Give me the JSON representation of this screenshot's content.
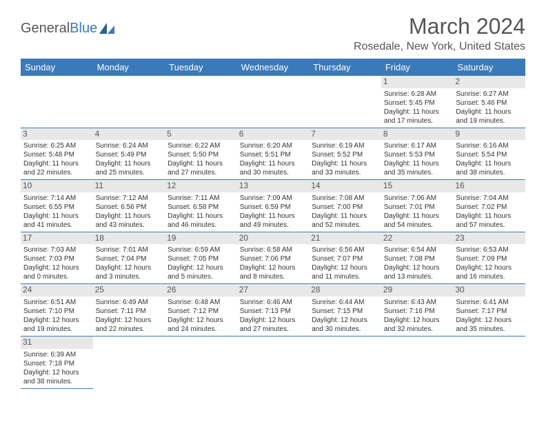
{
  "logo": {
    "text1": "General",
    "text2": "Blue"
  },
  "title": "March 2024",
  "location": "Rosedale, New York, United States",
  "colors": {
    "accent": "#3b7ab8",
    "text": "#333333",
    "headerText": "#555555",
    "dayBg": "#e8e8e8"
  },
  "dayHeaders": [
    "Sunday",
    "Monday",
    "Tuesday",
    "Wednesday",
    "Thursday",
    "Friday",
    "Saturday"
  ],
  "layout": {
    "firstWeekday": 5,
    "totalDays": 31
  },
  "days": [
    {
      "n": 1,
      "sunrise": "6:28 AM",
      "sunset": "5:45 PM",
      "daylight": "11 hours and 17 minutes."
    },
    {
      "n": 2,
      "sunrise": "6:27 AM",
      "sunset": "5:46 PM",
      "daylight": "11 hours and 19 minutes."
    },
    {
      "n": 3,
      "sunrise": "6:25 AM",
      "sunset": "5:48 PM",
      "daylight": "11 hours and 22 minutes."
    },
    {
      "n": 4,
      "sunrise": "6:24 AM",
      "sunset": "5:49 PM",
      "daylight": "11 hours and 25 minutes."
    },
    {
      "n": 5,
      "sunrise": "6:22 AM",
      "sunset": "5:50 PM",
      "daylight": "11 hours and 27 minutes."
    },
    {
      "n": 6,
      "sunrise": "6:20 AM",
      "sunset": "5:51 PM",
      "daylight": "11 hours and 30 minutes."
    },
    {
      "n": 7,
      "sunrise": "6:19 AM",
      "sunset": "5:52 PM",
      "daylight": "11 hours and 33 minutes."
    },
    {
      "n": 8,
      "sunrise": "6:17 AM",
      "sunset": "5:53 PM",
      "daylight": "11 hours and 35 minutes."
    },
    {
      "n": 9,
      "sunrise": "6:16 AM",
      "sunset": "5:54 PM",
      "daylight": "11 hours and 38 minutes."
    },
    {
      "n": 10,
      "sunrise": "7:14 AM",
      "sunset": "6:55 PM",
      "daylight": "11 hours and 41 minutes."
    },
    {
      "n": 11,
      "sunrise": "7:12 AM",
      "sunset": "6:56 PM",
      "daylight": "11 hours and 43 minutes."
    },
    {
      "n": 12,
      "sunrise": "7:11 AM",
      "sunset": "6:58 PM",
      "daylight": "11 hours and 46 minutes."
    },
    {
      "n": 13,
      "sunrise": "7:09 AM",
      "sunset": "6:59 PM",
      "daylight": "11 hours and 49 minutes."
    },
    {
      "n": 14,
      "sunrise": "7:08 AM",
      "sunset": "7:00 PM",
      "daylight": "11 hours and 52 minutes."
    },
    {
      "n": 15,
      "sunrise": "7:06 AM",
      "sunset": "7:01 PM",
      "daylight": "11 hours and 54 minutes."
    },
    {
      "n": 16,
      "sunrise": "7:04 AM",
      "sunset": "7:02 PM",
      "daylight": "11 hours and 57 minutes."
    },
    {
      "n": 17,
      "sunrise": "7:03 AM",
      "sunset": "7:03 PM",
      "daylight": "12 hours and 0 minutes."
    },
    {
      "n": 18,
      "sunrise": "7:01 AM",
      "sunset": "7:04 PM",
      "daylight": "12 hours and 3 minutes."
    },
    {
      "n": 19,
      "sunrise": "6:59 AM",
      "sunset": "7:05 PM",
      "daylight": "12 hours and 5 minutes."
    },
    {
      "n": 20,
      "sunrise": "6:58 AM",
      "sunset": "7:06 PM",
      "daylight": "12 hours and 8 minutes."
    },
    {
      "n": 21,
      "sunrise": "6:56 AM",
      "sunset": "7:07 PM",
      "daylight": "12 hours and 11 minutes."
    },
    {
      "n": 22,
      "sunrise": "6:54 AM",
      "sunset": "7:08 PM",
      "daylight": "12 hours and 13 minutes."
    },
    {
      "n": 23,
      "sunrise": "6:53 AM",
      "sunset": "7:09 PM",
      "daylight": "12 hours and 16 minutes."
    },
    {
      "n": 24,
      "sunrise": "6:51 AM",
      "sunset": "7:10 PM",
      "daylight": "12 hours and 19 minutes."
    },
    {
      "n": 25,
      "sunrise": "6:49 AM",
      "sunset": "7:11 PM",
      "daylight": "12 hours and 22 minutes."
    },
    {
      "n": 26,
      "sunrise": "6:48 AM",
      "sunset": "7:12 PM",
      "daylight": "12 hours and 24 minutes."
    },
    {
      "n": 27,
      "sunrise": "6:46 AM",
      "sunset": "7:13 PM",
      "daylight": "12 hours and 27 minutes."
    },
    {
      "n": 28,
      "sunrise": "6:44 AM",
      "sunset": "7:15 PM",
      "daylight": "12 hours and 30 minutes."
    },
    {
      "n": 29,
      "sunrise": "6:43 AM",
      "sunset": "7:16 PM",
      "daylight": "12 hours and 32 minutes."
    },
    {
      "n": 30,
      "sunrise": "6:41 AM",
      "sunset": "7:17 PM",
      "daylight": "12 hours and 35 minutes."
    },
    {
      "n": 31,
      "sunrise": "6:39 AM",
      "sunset": "7:18 PM",
      "daylight": "12 hours and 38 minutes."
    }
  ]
}
